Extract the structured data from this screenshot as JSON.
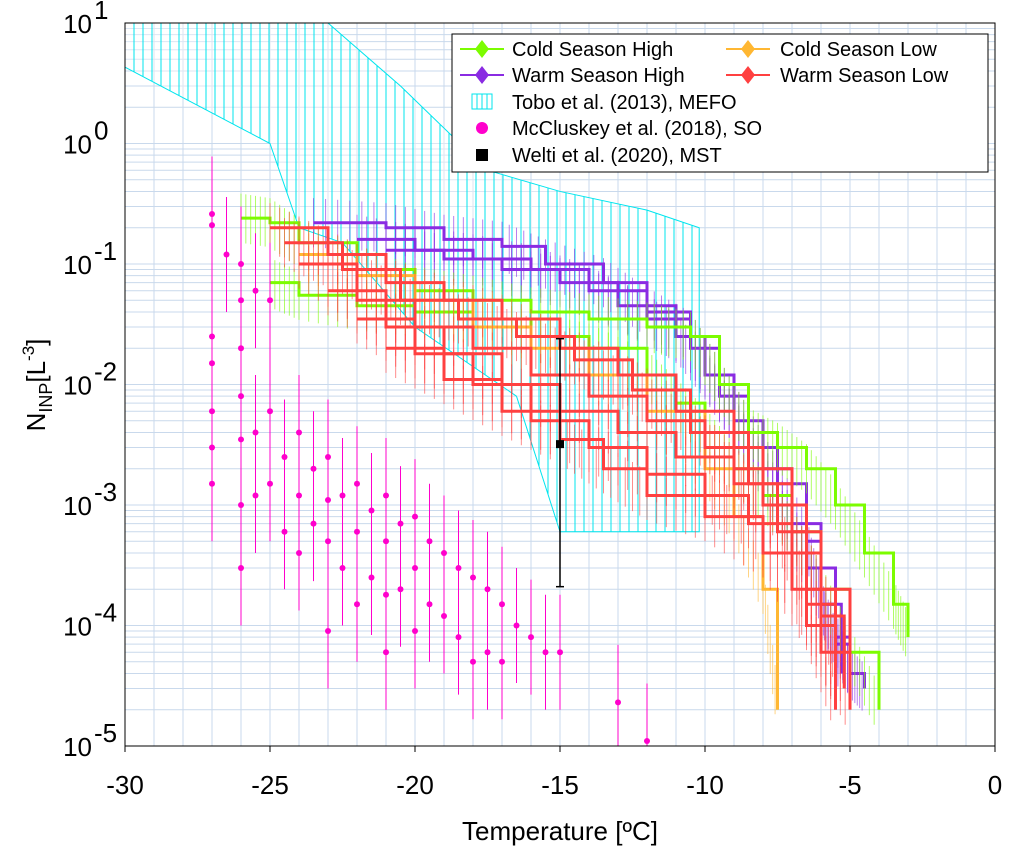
{
  "chart_data": {
    "type": "line",
    "xlabel": "Temperature [ºC]",
    "ylabel_main": "N",
    "ylabel_sub": "INP",
    "ylabel_unit": "[L",
    "ylabel_unit_sup": "-3",
    "ylabel_unit_close": "]",
    "xlim": [
      -30,
      0
    ],
    "ylim_log10": [
      -5,
      1
    ],
    "y_scale": "log",
    "grid": true,
    "legend_position": "top-right",
    "x_ticks": [
      "-30",
      "-25",
      "-20",
      "-15",
      "-10",
      "-5",
      "0"
    ],
    "y_ticks": [
      {
        "base": "10",
        "exp": "1",
        "value": 10
      },
      {
        "base": "10",
        "exp": "0",
        "value": 1
      },
      {
        "base": "10",
        "exp": "-1",
        "value": 0.1
      },
      {
        "base": "10",
        "exp": "-2",
        "value": 0.01
      },
      {
        "base": "10",
        "exp": "-3",
        "value": 0.001
      },
      {
        "base": "10",
        "exp": "-4",
        "value": 0.0001
      },
      {
        "base": "10",
        "exp": "-5",
        "value": 1e-05
      }
    ],
    "legend": [
      {
        "label": "Cold Season High",
        "color": "#7cfc00",
        "marker": "diamond"
      },
      {
        "label": "Cold Season Low",
        "color": "#ffb732",
        "marker": "diamond"
      },
      {
        "label": "Warm Season High",
        "color": "#8a2be2",
        "marker": "diamond"
      },
      {
        "label": "Warm Season Low",
        "color": "#ff4040",
        "marker": "diamond"
      },
      {
        "label": "Tobo et al. (2013), MEFO",
        "color": "#00e5ee",
        "marker": "hatched-box"
      },
      {
        "label": "McCluskey et al. (2018), SO",
        "color": "#ff00cc",
        "marker": "circle"
      },
      {
        "label": "Welti et al. (2020), MST",
        "color": "#000000",
        "marker": "square"
      }
    ],
    "tobo_region": {
      "upper": [
        [
          -30,
          10
        ],
        [
          -23,
          10
        ],
        [
          -20.5,
          3
        ],
        [
          -17.5,
          0.6
        ],
        [
          -15,
          0.4
        ],
        [
          -12,
          0.28
        ],
        [
          -10.2,
          0.2
        ]
      ],
      "lower": [
        [
          -10.2,
          0.0006
        ],
        [
          -15,
          0.0006
        ],
        [
          -16.5,
          0.008
        ],
        [
          -20,
          0.03
        ],
        [
          -22.5,
          0.15
        ],
        [
          -24,
          0.2
        ],
        [
          -25,
          1.0
        ],
        [
          -30,
          4.3
        ]
      ]
    },
    "welti": {
      "x": -15,
      "y": 0.0032,
      "err_low": 0.00021,
      "err_high": 0.024
    },
    "mccluskey": {
      "x": [
        -27,
        -27,
        -27,
        -27,
        -27,
        -26,
        -26,
        -26,
        -26,
        -26,
        -25.5,
        -25.5,
        -25,
        -25,
        -24.5,
        -24.5,
        -24,
        -24,
        -24,
        -23.5,
        -23.5,
        -23,
        -23,
        -23,
        -23,
        -22.5,
        -22.5,
        -22,
        -22,
        -22,
        -21.5,
        -21.5,
        -21,
        -21,
        -21,
        -21,
        -20.5,
        -20.5,
        -20,
        -20,
        -20,
        -19.5,
        -19.5,
        -19,
        -19,
        -18.5,
        -18.5,
        -18,
        -18,
        -17.5,
        -17.5,
        -17,
        -17,
        -16.5,
        -16,
        -15.5,
        -15,
        -13,
        -12
      ],
      "y": [
        0.025,
        0.015,
        0.006,
        0.003,
        0.0015,
        0.02,
        0.008,
        0.0035,
        0.001,
        0.0003,
        0.004,
        0.0012,
        0.006,
        0.0015,
        0.0025,
        0.0006,
        0.004,
        0.0012,
        0.0004,
        0.002,
        0.0007,
        0.0025,
        0.0011,
        0.0005,
        9e-05,
        0.0012,
        0.0003,
        0.0015,
        0.0006,
        0.00015,
        0.0009,
        0.00025,
        0.0012,
        0.0005,
        0.00018,
        6e-05,
        0.0007,
        0.0002,
        0.0008,
        0.0003,
        9e-05,
        0.0005,
        0.00015,
        0.0004,
        0.00012,
        0.0003,
        8e-05,
        0.00025,
        5e-05,
        0.0002,
        6e-05,
        0.00015,
        5e-05,
        0.0001,
        8e-05,
        6e-05,
        6e-05,
        2.3e-05,
        1.1e-05
      ],
      "top_x": [
        -27,
        -27,
        -26.5,
        -26,
        -26,
        -25.5,
        -25
      ],
      "top_y": [
        0.26,
        0.21,
        0.12,
        0.1,
        0.05,
        0.06,
        0.05
      ]
    },
    "series": [
      {
        "group": "Warm Season High",
        "color": "#8a2be2",
        "x": [
          -23.5,
          -21,
          -19,
          -17,
          -15.5,
          -13.5,
          -12,
          -10.5,
          -9.5,
          -8.5,
          -7.5,
          -6.5,
          -6,
          -5.5,
          -5,
          -4.5
        ],
        "y": [
          0.22,
          0.2,
          0.16,
          0.14,
          0.1,
          0.07,
          0.04,
          0.025,
          0.01,
          0.004,
          0.0015,
          0.0005,
          0.00015,
          7e-05,
          4e-05,
          3e-05
        ]
      },
      {
        "group": "Warm Season High",
        "color": "#8a2be2",
        "x": [
          -22,
          -20,
          -18,
          -16,
          -14,
          -12,
          -10.5,
          -9.5,
          -8.5,
          -7.5,
          -6.5,
          -5.5,
          -5
        ],
        "y": [
          0.16,
          0.13,
          0.11,
          0.09,
          0.06,
          0.035,
          0.02,
          0.008,
          0.003,
          0.001,
          0.0003,
          8e-05,
          4e-05
        ]
      },
      {
        "group": "Warm Season High",
        "color": "#8a2be2",
        "x": [
          -21,
          -19,
          -17,
          -15,
          -13,
          -11,
          -10,
          -9,
          -8,
          -7,
          -6,
          -5.3
        ],
        "y": [
          0.13,
          0.11,
          0.09,
          0.07,
          0.045,
          0.025,
          0.012,
          0.005,
          0.002,
          0.0007,
          0.00015,
          4e-05
        ]
      },
      {
        "group": "Cold Season High",
        "color": "#7cfc00",
        "x": [
          -26,
          -25,
          -24,
          -22,
          -20,
          -18,
          -16,
          -14,
          -12,
          -10.5,
          -9.5,
          -8.5,
          -7.5,
          -6.5,
          -5.5,
          -4.5,
          -3.5,
          -3
        ],
        "y": [
          0.24,
          0.22,
          0.15,
          0.09,
          0.06,
          0.05,
          0.04,
          0.035,
          0.03,
          0.025,
          0.01,
          0.004,
          0.003,
          0.002,
          0.001,
          0.0004,
          0.00015,
          8e-05
        ]
      },
      {
        "group": "Cold Season High",
        "color": "#7cfc00",
        "x": [
          -25,
          -24,
          -22,
          -20,
          -18,
          -16,
          -14,
          -12,
          -11,
          -10,
          -9,
          -8,
          -7,
          -6,
          -5,
          -4
        ],
        "y": [
          0.07,
          0.055,
          0.045,
          0.04,
          0.035,
          0.025,
          0.02,
          0.012,
          0.007,
          0.004,
          0.002,
          0.0012,
          0.0006,
          0.0002,
          6e-05,
          2e-05
        ]
      },
      {
        "group": "Cold Season Low",
        "color": "#ffb732",
        "x": [
          -24,
          -22,
          -20,
          -18,
          -16,
          -14,
          -12,
          -10,
          -9,
          -8,
          -7.5
        ],
        "y": [
          0.12,
          0.08,
          0.05,
          0.03,
          0.02,
          0.012,
          0.006,
          0.002,
          0.0008,
          0.0002,
          2e-05
        ]
      },
      {
        "group": "Warm Season Low",
        "color": "#ff4040",
        "x": [
          -25,
          -23,
          -21,
          -19,
          -17,
          -15,
          -13,
          -11,
          -9,
          -7,
          -6,
          -5
        ],
        "y": [
          0.2,
          0.12,
          0.07,
          0.05,
          0.035,
          0.02,
          0.012,
          0.006,
          0.002,
          0.0006,
          0.0002,
          5e-05
        ]
      },
      {
        "group": "Warm Season Low",
        "color": "#ff4040",
        "x": [
          -24.5,
          -22.5,
          -20.5,
          -18.5,
          -16.5,
          -14.5,
          -12.5,
          -10.5,
          -8.5,
          -7,
          -6,
          -5.2
        ],
        "y": [
          0.15,
          0.09,
          0.05,
          0.035,
          0.025,
          0.016,
          0.009,
          0.004,
          0.0015,
          0.0004,
          0.00012,
          3e-05
        ]
      },
      {
        "group": "Warm Season Low",
        "color": "#ff4040",
        "x": [
          -24,
          -22,
          -20,
          -18,
          -16,
          -14,
          -12,
          -10,
          -8,
          -6.5,
          -5.5
        ],
        "y": [
          0.1,
          0.05,
          0.03,
          0.02,
          0.012,
          0.008,
          0.005,
          0.003,
          0.001,
          0.0002,
          4e-05
        ]
      },
      {
        "group": "Warm Season Low",
        "color": "#ff4040",
        "x": [
          -23,
          -21,
          -19,
          -17,
          -15,
          -13,
          -11,
          -9,
          -7.5,
          -6.5,
          -5.5
        ],
        "y": [
          0.06,
          0.03,
          0.018,
          0.01,
          0.006,
          0.004,
          0.0025,
          0.0015,
          0.0006,
          0.00015,
          3e-05
        ]
      },
      {
        "group": "Warm Season Low",
        "color": "#ff4040",
        "x": [
          -22,
          -20,
          -18,
          -16,
          -14,
          -12,
          -10,
          -8.5,
          -7,
          -6,
          -5
        ],
        "y": [
          0.035,
          0.018,
          0.01,
          0.005,
          0.003,
          0.0018,
          0.0012,
          0.0007,
          0.0002,
          6e-05,
          2e-05
        ]
      },
      {
        "group": "Warm Season Low",
        "color": "#ff4040",
        "x": [
          -21,
          -19,
          -17,
          -15,
          -13.5,
          -12,
          -10,
          -8,
          -6.5,
          -5.5
        ],
        "y": [
          0.02,
          0.011,
          0.006,
          0.0035,
          0.002,
          0.0012,
          0.0008,
          0.0004,
          0.0001,
          2e-05
        ]
      }
    ]
  }
}
